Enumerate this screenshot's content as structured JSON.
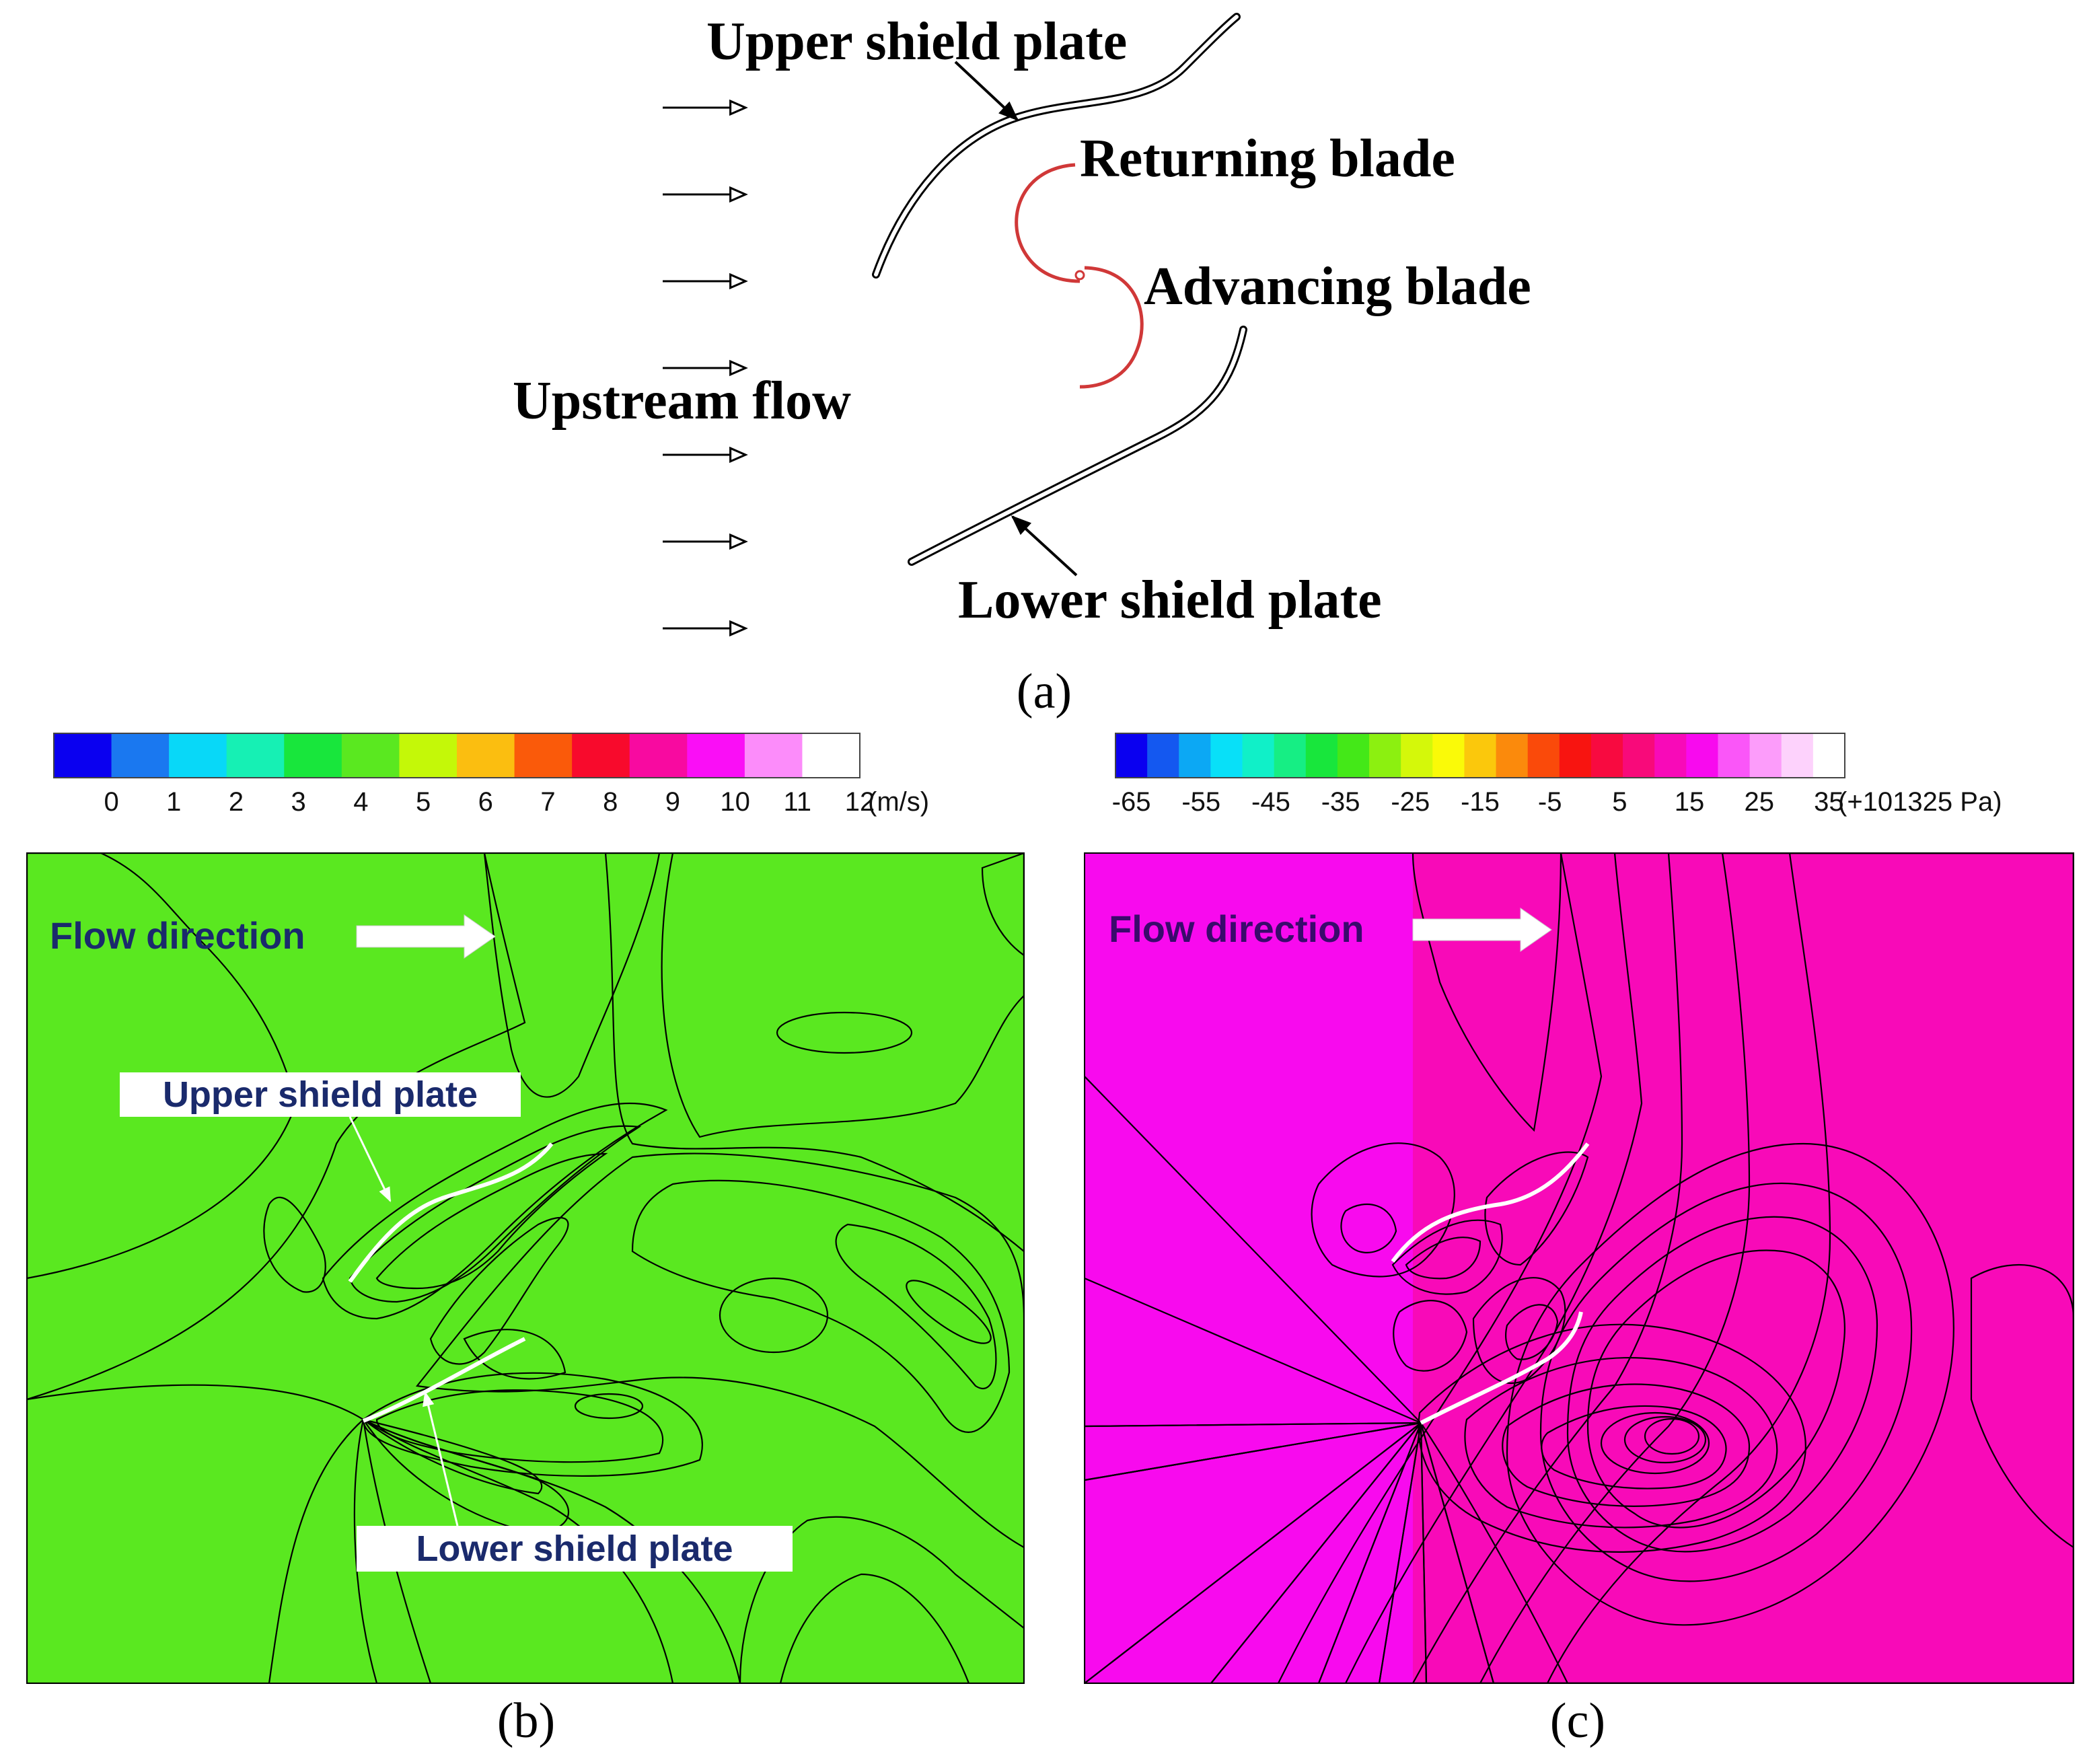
{
  "schematic": {
    "upper_plate_label": "Upper shield plate",
    "returning_blade_label": "Returning blade",
    "advancing_blade_label": "Advancing blade",
    "upstream_flow_label": "Upstream flow",
    "lower_plate_label": "Lower shield plate",
    "caption": "(a)",
    "arrow_count": 7
  },
  "velocity_panel": {
    "caption": "(b)",
    "unit": "(m/s)",
    "tick_labels": [
      "0",
      "1",
      "2",
      "3",
      "4",
      "5",
      "6",
      "7",
      "8",
      "9",
      "10",
      "11",
      "12"
    ],
    "colors": [
      "#0a00f0",
      "#1a78f0",
      "#08d8f8",
      "#16f0b4",
      "#18e63c",
      "#5ae820",
      "#c4f808",
      "#fbbe10",
      "#fa5a0a",
      "#f80a2c",
      "#f80aa0",
      "#fa0ef6",
      "#fc8cfa",
      "#ffffff"
    ],
    "flow_label": "Flow direction",
    "upper_plate_label": "Upper shield plate",
    "lower_plate_label": "Lower shield plate"
  },
  "pressure_panel": {
    "caption": "(c)",
    "unit": "(+101325 Pa)",
    "tick_labels": [
      "-65",
      "-55",
      "-45",
      "-35",
      "-25",
      "-15",
      "-5",
      "5",
      "15",
      "25",
      "35"
    ],
    "colors": [
      "#0a00f0",
      "#1458f0",
      "#0ca8f4",
      "#08e0f8",
      "#10f0c8",
      "#16ee84",
      "#18e63c",
      "#44e818",
      "#8cf010",
      "#d4f80a",
      "#fafa08",
      "#fbc80c",
      "#fb8a0c",
      "#fa4a0a",
      "#f81410",
      "#f80a40",
      "#f80a7a",
      "#f80ab8",
      "#f80aee",
      "#fa56f8",
      "#fc9cfa",
      "#fdd2fc",
      "#ffffff"
    ],
    "flow_label": "Flow direction"
  }
}
